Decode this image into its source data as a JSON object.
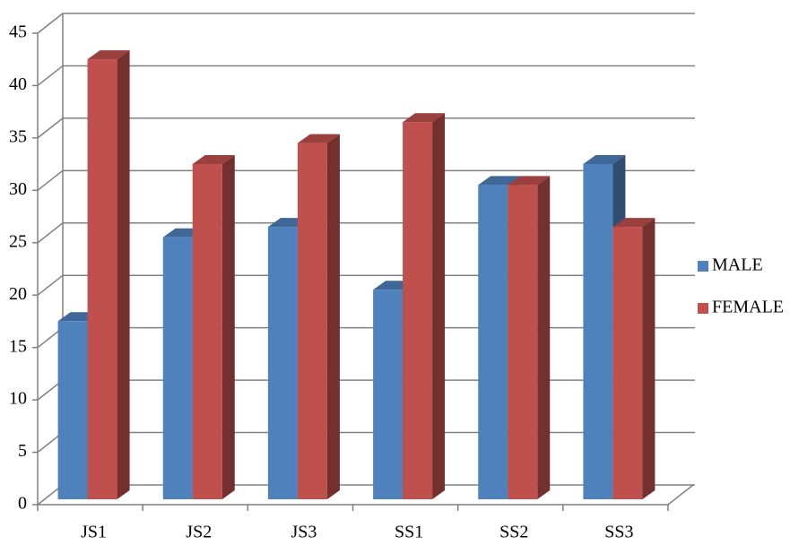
{
  "chart_data": {
    "type": "bar3d",
    "categories": [
      "JS1",
      "JS2",
      "JS3",
      "SS1",
      "SS2",
      "SS3"
    ],
    "series": [
      {
        "name": "MALE",
        "color": "#4f81bd",
        "values": [
          17,
          25,
          26,
          20,
          30,
          32
        ]
      },
      {
        "name": "FEMALE",
        "color": "#c0504d",
        "values": [
          42,
          32,
          34,
          36,
          30,
          26
        ]
      }
    ],
    "ylim": [
      0,
      45
    ],
    "yticks": [
      0,
      5,
      10,
      15,
      20,
      25,
      30,
      35,
      40,
      45
    ],
    "grid": true,
    "legend": "right"
  }
}
